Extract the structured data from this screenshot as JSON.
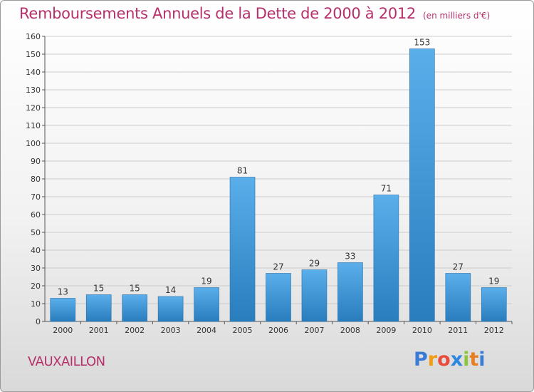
{
  "title": "Remboursements Annuels de la Dette de 2000 à 2012",
  "unit": "(en milliers d'€)",
  "commune": "VAUXAILLON",
  "logo": {
    "letters": [
      "P",
      "r",
      "o",
      "x",
      "i",
      "t",
      "i"
    ],
    "colors": [
      "#3a7bd5",
      "#f39c12",
      "#e74c3c",
      "#2e86de",
      "#8cc63f",
      "#e67e22",
      "#3a7bd5"
    ]
  },
  "colors": {
    "bar_top": "#5aaeea",
    "bar_bottom": "#2a7dbd",
    "title": "#b5306a",
    "grid": "#cccccc"
  },
  "chart_data": {
    "type": "bar",
    "categories": [
      "2000",
      "2001",
      "2002",
      "2003",
      "2004",
      "2005",
      "2006",
      "2007",
      "2008",
      "2009",
      "2010",
      "2011",
      "2012"
    ],
    "values": [
      13,
      15,
      15,
      14,
      19,
      81,
      27,
      29,
      33,
      71,
      153,
      27,
      19
    ],
    "ylim": [
      0,
      160
    ],
    "yticks": [
      0,
      10,
      20,
      30,
      40,
      50,
      60,
      70,
      80,
      90,
      100,
      110,
      120,
      130,
      140,
      150,
      160
    ],
    "grid": true
  }
}
